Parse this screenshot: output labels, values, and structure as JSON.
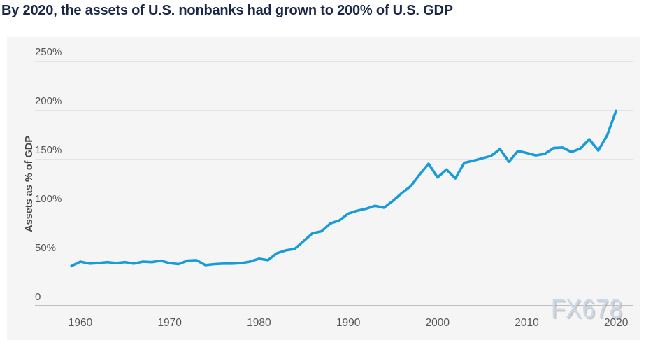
{
  "page": {
    "title": "By 2020, the assets of U.S. nonbanks had grown to 200% of U.S. GDP",
    "watermark": "FX678"
  },
  "chart_data": {
    "type": "line",
    "title": "By 2020, the assets of U.S. nonbanks had grown to 200% of U.S. GDP",
    "xlabel": "",
    "ylabel": "Assets as % of GDP",
    "grid": true,
    "legend": false,
    "ylim": [
      0,
      250
    ],
    "xlim": [
      1958.5,
      2021.5
    ],
    "x": [
      1959,
      1960,
      1961,
      1962,
      1963,
      1964,
      1965,
      1966,
      1967,
      1968,
      1969,
      1970,
      1971,
      1972,
      1973,
      1974,
      1975,
      1976,
      1977,
      1978,
      1979,
      1980,
      1981,
      1982,
      1983,
      1984,
      1985,
      1986,
      1987,
      1988,
      1989,
      1990,
      1991,
      1992,
      1993,
      1994,
      1995,
      1996,
      1997,
      1998,
      1999,
      2000,
      2001,
      2002,
      2003,
      2004,
      2005,
      2006,
      2007,
      2008,
      2009,
      2010,
      2011,
      2012,
      2013,
      2014,
      2015,
      2016,
      2017,
      2018,
      2019,
      2020
    ],
    "series": [
      {
        "name": "Assets as % of GDP",
        "values": [
          40.5,
          45,
          43,
          43.5,
          44.5,
          43.5,
          44.5,
          43,
          45,
          44.5,
          46,
          43.5,
          42.5,
          46,
          46.5,
          41.5,
          42.5,
          43,
          43,
          43.5,
          45,
          48,
          46.5,
          53.5,
          56.5,
          58,
          66,
          74,
          76,
          84,
          87,
          94,
          97,
          99,
          102,
          100,
          107,
          115,
          122,
          134,
          145,
          131,
          139,
          130,
          146,
          148,
          150.5,
          153,
          160,
          147,
          158,
          156,
          153.5,
          155,
          161,
          161.5,
          157,
          160.5,
          170,
          158.5,
          174,
          199
        ]
      }
    ],
    "yticks": [
      {
        "value": 0,
        "label": "0"
      },
      {
        "value": 50,
        "label": "50%"
      },
      {
        "value": 100,
        "label": "100%"
      },
      {
        "value": 150,
        "label": "150%"
      },
      {
        "value": 200,
        "label": "200%"
      },
      {
        "value": 250,
        "label": "250%"
      }
    ],
    "xticks": [
      1960,
      1970,
      1980,
      1990,
      2000,
      2010,
      2020
    ],
    "colors": {
      "line": "#189cd8",
      "plot_background": "#f5f5f5",
      "gridline": "#e4e4e4",
      "axis_line": "#bdbdbd",
      "title": "#1a2747",
      "tick_label": "#565656",
      "watermark": "#c9d9eb"
    }
  }
}
